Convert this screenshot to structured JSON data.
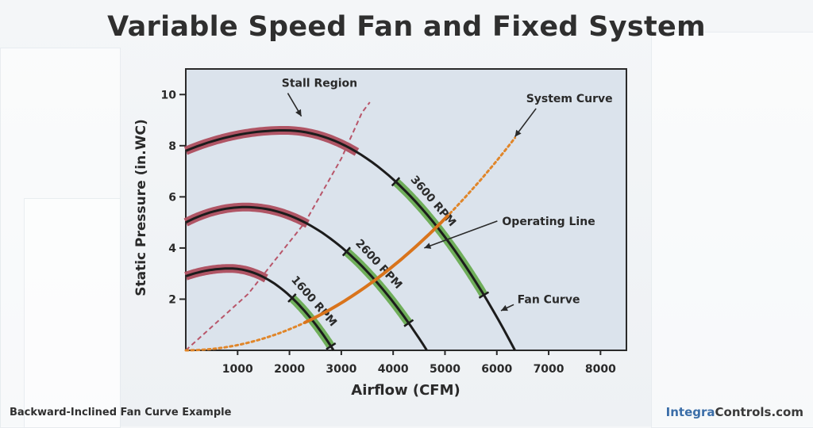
{
  "title": "Variable Speed Fan and Fixed System",
  "footer_caption": "Backward-Inclined Fan Curve Example",
  "brand": {
    "part1": "Integra",
    "part2": "Controls.com"
  },
  "colors": {
    "plot_bg": "#dbe3ec",
    "fan_curve": "#1c1c1c",
    "stall": "#b05565",
    "operating": "#6fae5a",
    "system": "#e0862a",
    "stall_line": "#b8566a"
  },
  "chart_data": {
    "type": "line",
    "xlabel": "Airflow (CFM)",
    "ylabel": "Static Pressure (in.WC)",
    "xlim": [
      0,
      8500
    ],
    "ylim": [
      0,
      11
    ],
    "xticks": [
      1000,
      2000,
      3000,
      4000,
      5000,
      6000,
      7000,
      8000
    ],
    "yticks": [
      2,
      4,
      6,
      8,
      10
    ],
    "fan_curves": [
      {
        "name": "3600 RPM",
        "peak_x": 1900,
        "peak_y": 8.6,
        "x_start": 0,
        "y_start": 7.8,
        "x_end": 6350,
        "stall_range": [
          0,
          3300
        ],
        "operating_range": [
          4050,
          5750
        ]
      },
      {
        "name": "2600 RPM",
        "peak_x": 1150,
        "peak_y": 5.6,
        "x_start": 0,
        "y_start": 5.0,
        "x_end": 4650,
        "stall_range": [
          0,
          2350
        ],
        "operating_range": [
          3100,
          4300
        ]
      },
      {
        "name": "1600 RPM",
        "peak_x": 850,
        "peak_y": 3.2,
        "x_start": 0,
        "y_start": 2.9,
        "x_end": 2850,
        "stall_range": [
          0,
          1550
        ],
        "operating_range": [
          2050,
          2800
        ]
      }
    ],
    "system_curve": {
      "name": "System Curve",
      "k": 2.06e-07,
      "x_end": 6350
    },
    "operating_line": {
      "name": "Operating Line",
      "x_range": [
        2300,
        5050
      ]
    },
    "stall_line": {
      "name": "Stall Region",
      "points": [
        [
          0,
          0
        ],
        [
          1200,
          2.2
        ],
        [
          2300,
          5.0
        ],
        [
          3000,
          7.5
        ],
        [
          3400,
          9.3
        ],
        [
          3550,
          9.7
        ]
      ]
    },
    "annotations": [
      {
        "text": "Stall Region",
        "x": 2580,
        "y": 10.3,
        "arrow_to": [
          2230,
          9.15
        ]
      },
      {
        "text": "System Curve",
        "x": 7400,
        "y": 9.7,
        "arrow_to": [
          6350,
          8.35
        ]
      },
      {
        "text": "Operating Line",
        "x": 7000,
        "y": 4.9,
        "arrow_to": [
          4600,
          4.0
        ]
      },
      {
        "text": "Fan Curve",
        "x": 7000,
        "y": 1.85,
        "arrow_to": [
          6080,
          1.55
        ]
      }
    ]
  }
}
